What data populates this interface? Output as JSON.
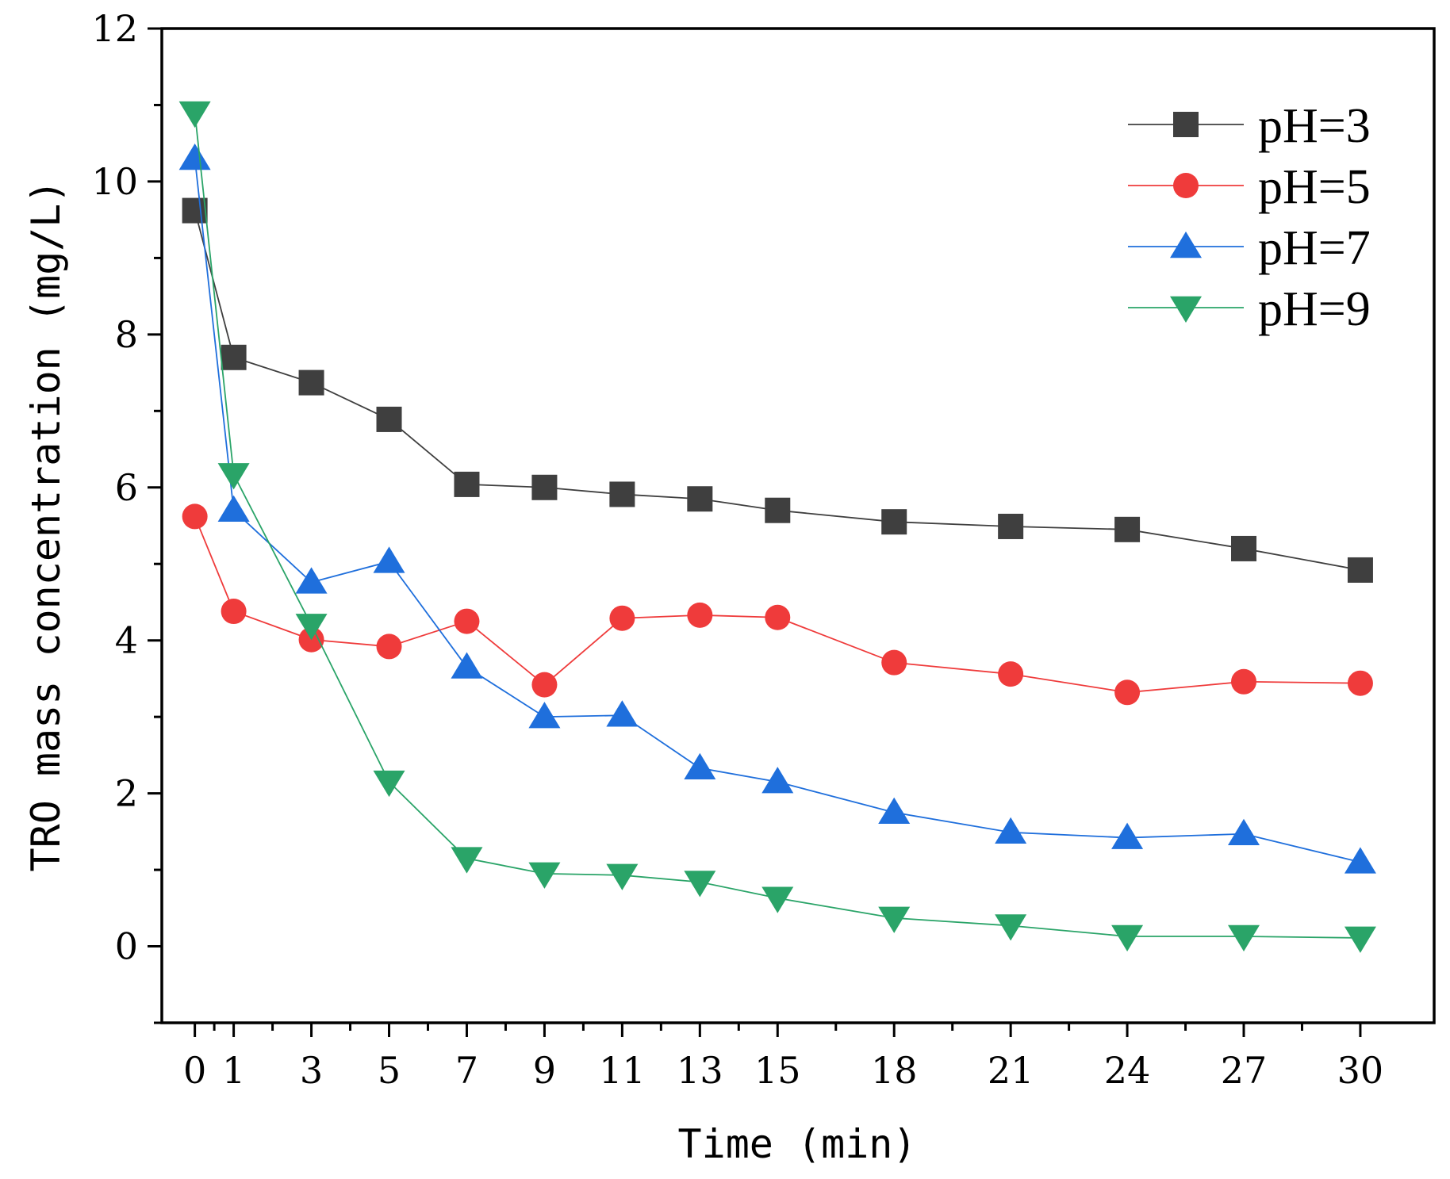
{
  "chart_data": {
    "type": "line",
    "title": "",
    "xlabel": "Time (min)",
    "ylabel": "TRO mass concentration (mg/L)",
    "xlim": [
      -0.85,
      31.9
    ],
    "ylim": [
      -1,
      12
    ],
    "x_ticks": [
      0,
      1,
      3,
      5,
      7,
      9,
      11,
      13,
      15,
      18,
      21,
      24,
      27,
      30
    ],
    "x_tick_labels": [
      "0",
      "1",
      "3",
      "5",
      "7",
      "9",
      "11",
      "13",
      "15",
      "18",
      "21",
      "24",
      "27",
      "30"
    ],
    "y_ticks": [
      0,
      2,
      4,
      6,
      8,
      10,
      12
    ],
    "y_tick_labels": [
      "0",
      "2",
      "4",
      "6",
      "8",
      "10",
      "12"
    ],
    "grid": false,
    "legend_position": "top-right",
    "x": [
      0,
      1,
      3,
      5,
      7,
      9,
      11,
      13,
      15,
      18,
      21,
      24,
      27,
      30
    ],
    "series": [
      {
        "name": "pH=3",
        "color": "#3f3f3f",
        "marker": "square",
        "values": [
          9.62,
          7.7,
          7.37,
          6.89,
          6.04,
          6.0,
          5.91,
          5.85,
          5.7,
          5.55,
          5.49,
          5.45,
          5.2,
          4.92
        ]
      },
      {
        "name": "pH=5",
        "color": "#ef3b3b",
        "marker": "circle",
        "values": [
          5.62,
          4.38,
          4.01,
          3.92,
          4.25,
          3.42,
          4.29,
          4.33,
          4.3,
          3.71,
          3.56,
          3.32,
          3.46,
          3.44
        ]
      },
      {
        "name": "pH=7",
        "color": "#1f6fdc",
        "marker": "triangle-up",
        "values": [
          10.3,
          5.7,
          4.76,
          5.03,
          3.65,
          3.0,
          3.02,
          2.33,
          2.15,
          1.75,
          1.49,
          1.42,
          1.47,
          1.1
        ]
      },
      {
        "name": "pH=9",
        "color": "#2aa468",
        "marker": "triangle-down",
        "values": [
          10.9,
          6.17,
          4.2,
          2.15,
          1.15,
          0.95,
          0.93,
          0.84,
          0.63,
          0.37,
          0.27,
          0.13,
          0.13,
          0.11
        ]
      }
    ]
  }
}
